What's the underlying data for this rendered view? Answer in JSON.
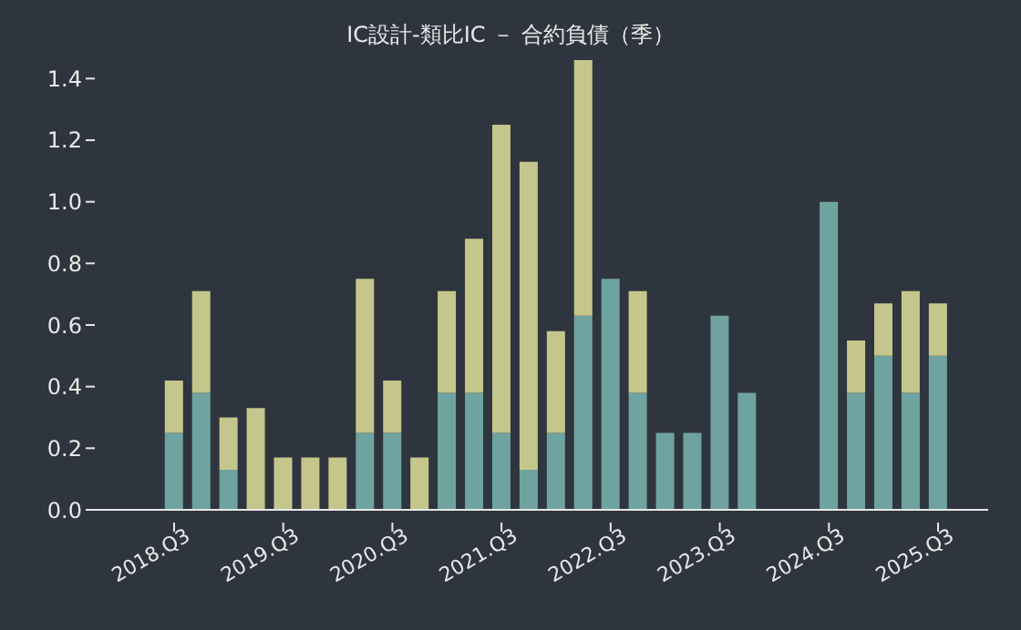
{
  "chart_data": {
    "type": "bar",
    "title": "IC設計-類比IC － 合約負債（季）",
    "stacked": true,
    "categories": [
      "2018.Q3",
      null,
      null,
      null,
      "2019.Q3",
      null,
      null,
      null,
      "2020.Q3",
      null,
      null,
      null,
      "2021.Q3",
      null,
      null,
      null,
      "2022.Q3",
      null,
      null,
      null,
      "2023.Q3",
      null,
      null,
      null,
      "2024.Q3",
      null,
      null,
      null,
      "2025.Q3"
    ],
    "series": [
      {
        "color": "#6fa3a0",
        "values": [
          0.25,
          0.38,
          0.13,
          0,
          0,
          0,
          0,
          0.25,
          0.25,
          0,
          0.38,
          0.38,
          0.25,
          0.13,
          0.25,
          0.63,
          0.75,
          0.38,
          0.25,
          0.25,
          0.63,
          0.38,
          null,
          null,
          1.0,
          0.38,
          0.5,
          0.38,
          0.5
        ]
      },
      {
        "color": "#c5c68c",
        "values": [
          0.17,
          0.33,
          0.17,
          0.33,
          0.17,
          0.17,
          0.17,
          0.5,
          0.17,
          0.17,
          0.33,
          0.5,
          1.0,
          1.0,
          0.33,
          0.83,
          0,
          0.33,
          0,
          0,
          0,
          0,
          null,
          null,
          0,
          0.17,
          0.17,
          0.33,
          0.17
        ]
      }
    ],
    "ylim": [
      0,
      1.46
    ],
    "yticks": [
      {
        "value": 0,
        "label": "0.0"
      },
      {
        "value": 0.2,
        "label": "0.2"
      },
      {
        "value": 0.4,
        "label": "0.4"
      },
      {
        "value": 0.6,
        "label": "0.6"
      },
      {
        "value": 0.8,
        "label": "0.8"
      },
      {
        "value": 1,
        "label": "1.0"
      },
      {
        "value": 1.2,
        "label": "1.2"
      },
      {
        "value": 1.4,
        "label": "1.4"
      }
    ]
  }
}
